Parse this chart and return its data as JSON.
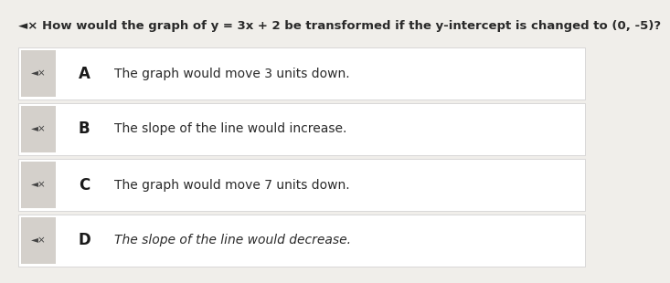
{
  "title": "◄× How would the graph of y = 3x + 2 be transformed if the y-intercept is changed to (0, -5)?",
  "title_fontsize": 9.5,
  "bg_color": "#f0eeea",
  "row_bg": "#ffffff",
  "icon_bg": "#d4d0cb",
  "options": [
    {
      "letter": "A",
      "text": "The graph would move 3 units down.",
      "italic": false
    },
    {
      "letter": "B",
      "text": "The slope of the line would increase.",
      "italic": false
    },
    {
      "letter": "C",
      "text": "The graph would move 7 units down.",
      "italic": false
    },
    {
      "letter": "D",
      "text": "The slope of the line would decrease.",
      "italic": true
    }
  ],
  "speaker_icon": "◄×",
  "option_fontsize": 10,
  "letter_fontsize": 12,
  "text_color": "#2a2a2a",
  "letter_color": "#1a1a1a"
}
